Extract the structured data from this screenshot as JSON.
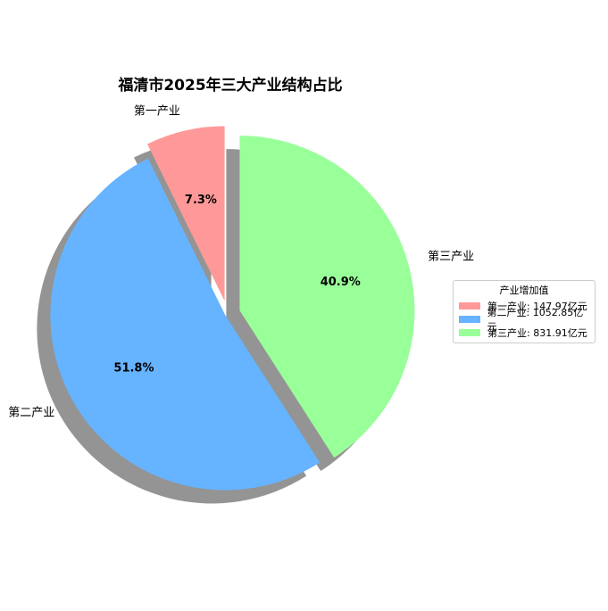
{
  "chart_data": {
    "type": "pie",
    "title": "福清市2025年三大产业结构占比",
    "categories": [
      "第一产业",
      "第二产业",
      "第三产业"
    ],
    "values": [
      147.97,
      1052.85,
      831.91
    ],
    "percent_labels": [
      "7.3%",
      "51.8%",
      "40.9%"
    ],
    "colors": [
      "#ff9999",
      "#66b3ff",
      "#99ff99"
    ],
    "start_angle": 90,
    "shadow": true,
    "exploded": true,
    "legend": {
      "title": "产业增加值",
      "placement": "right",
      "entries": [
        "第一产业: 147.97亿元",
        "第二产业: 1052.85亿元",
        "第三产业: 831.91亿元"
      ]
    }
  }
}
